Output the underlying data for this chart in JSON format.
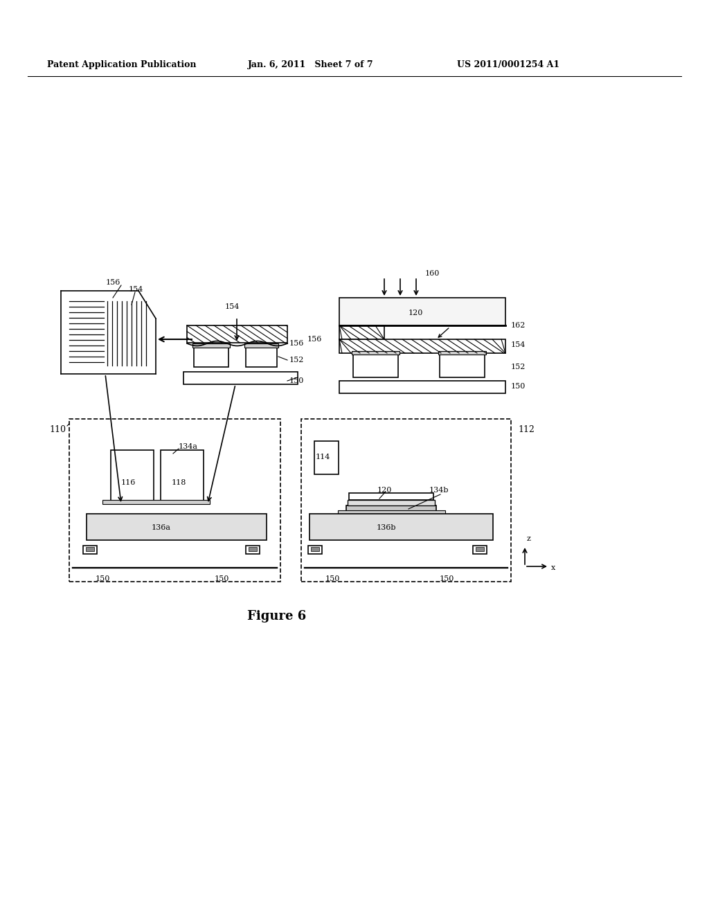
{
  "title": "Figure 6",
  "header_left": "Patent Application Publication",
  "header_mid": "Jan. 6, 2011   Sheet 7 of 7",
  "header_right": "US 2011/0001254 A1",
  "bg_color": "#ffffff",
  "text_color": "#000000",
  "line_color": "#000000"
}
